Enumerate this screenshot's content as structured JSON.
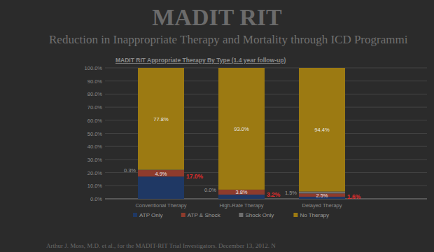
{
  "slide": {
    "title": "MADIT RIT",
    "subtitle": "Reduction in Inappropriate Therapy and Mortality through ICD Programmi",
    "footnote": "Arthur J. Moss, M.D. et al., for the MADIT-RIT Trial Investigators. December 13, 2012. N"
  },
  "chart_data": {
    "type": "bar",
    "stacked": true,
    "data_labels": true,
    "legend": "bottom",
    "grid": true,
    "title": "MADIT RIT Appropriate Therapy By Type (1.4 year follow-up)",
    "categories": [
      "Conventional Therapy",
      "High-Rate Therapy",
      "Delayed Therapy"
    ],
    "ylim": [
      0,
      100
    ],
    "yticks": [
      {
        "value": 0,
        "label": "0.0%"
      },
      {
        "value": 10,
        "label": "10.0%"
      },
      {
        "value": 20,
        "label": "20.0%"
      },
      {
        "value": 30,
        "label": "30.0%"
      },
      {
        "value": 40,
        "label": "40.0%"
      },
      {
        "value": 50,
        "label": "50.0%"
      },
      {
        "value": 60,
        "label": "60.0%"
      },
      {
        "value": 70,
        "label": "70.0%"
      },
      {
        "value": 80,
        "label": "80.0%"
      },
      {
        "value": 90,
        "label": "90.0%"
      },
      {
        "value": 100,
        "label": "100.0%"
      }
    ],
    "series": [
      {
        "name": "ATP Only",
        "color": "#1f3864",
        "values": [
          17.0,
          3.2,
          1.6
        ],
        "value_labels": [
          "17.0%",
          "3.2%",
          "1.6%"
        ]
      },
      {
        "name": "ATP & Shock",
        "color": "#8e3b2c",
        "values": [
          4.9,
          3.8,
          2.5
        ],
        "value_labels": [
          "4.9%",
          "3.8%",
          "2.5%"
        ]
      },
      {
        "name": "Shock Only",
        "color": "#6f6f6f",
        "values": [
          0.3,
          0.0,
          1.5
        ],
        "value_labels": [
          "0.3%",
          "0.0%",
          "1.5%"
        ]
      },
      {
        "name": "No Therapy",
        "color": "#9c7a12",
        "values": [
          77.8,
          93.0,
          94.4
        ],
        "value_labels": [
          "77.8%",
          "93.0%",
          "94.4%"
        ]
      }
    ]
  }
}
